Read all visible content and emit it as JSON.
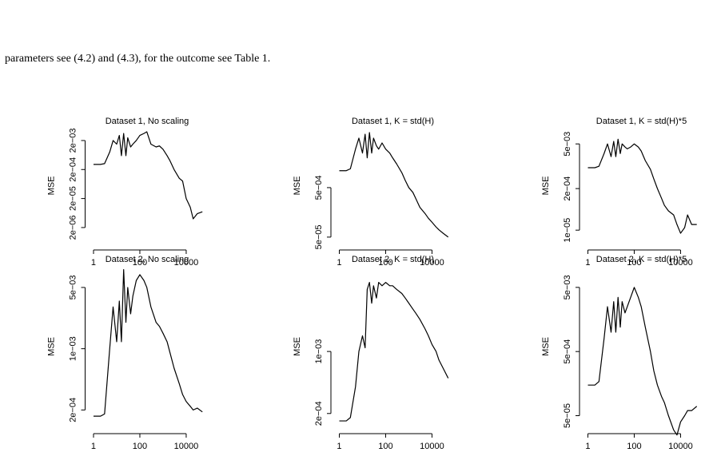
{
  "text": "parameters see (4.2) and (4.3), for the outcome see Table 1.",
  "chart_data": [
    {
      "type": "line",
      "title": "Dataset 1,  No scaling",
      "ylabel": "MSE",
      "log_x": true,
      "log_y": true,
      "color": "#000000",
      "x": [
        1,
        2,
        3,
        5,
        7,
        10,
        13,
        16,
        20,
        25,
        30,
        40,
        50,
        70,
        100,
        150,
        200,
        300,
        500,
        700,
        1000,
        1500,
        2000,
        3000,
        5000,
        7000,
        10000,
        15000,
        20000,
        30000,
        50000
      ],
      "values": [
        0.0003,
        0.0003,
        0.00032,
        0.0008,
        0.002,
        0.0015,
        0.003,
        0.0006,
        0.0035,
        0.0006,
        0.0025,
        0.0012,
        0.0015,
        0.002,
        0.003,
        0.0035,
        0.004,
        0.0015,
        0.0012,
        0.0013,
        0.001,
        0.0006,
        0.0004,
        0.0002,
        0.0001,
        8e-05,
        2e-05,
        1e-05,
        4e-06,
        6e-06,
        7e-06
      ],
      "xlim": [
        0.7,
        60000
      ],
      "ylim": [
        5.6e-07,
        0.0055
      ],
      "xticks": [
        1,
        100,
        10000
      ],
      "yticks": [
        {
          "value": 0.002,
          "label": "2e−03"
        },
        {
          "value": 0.0002,
          "label": "2e−04"
        },
        {
          "value": 2e-05,
          "label": "2e−05"
        },
        {
          "value": 2e-06,
          "label": "2e−06"
        }
      ]
    },
    {
      "type": "line",
      "title": "Dataset 1,  K = std(H)",
      "ylabel": "MSE",
      "log_x": true,
      "log_y": true,
      "color": "#000000",
      "x": [
        1,
        2,
        3,
        5,
        7,
        10,
        13,
        16,
        20,
        25,
        30,
        40,
        50,
        70,
        100,
        150,
        200,
        300,
        500,
        700,
        1000,
        1500,
        2000,
        3000,
        5000,
        7000,
        10000,
        15000,
        20000,
        30000,
        50000
      ],
      "values": [
        0.0011,
        0.0011,
        0.0012,
        0.003,
        0.005,
        0.0025,
        0.006,
        0.002,
        0.0065,
        0.0025,
        0.005,
        0.0035,
        0.003,
        0.004,
        0.003,
        0.0025,
        0.002,
        0.0015,
        0.001,
        0.0007,
        0.0005,
        0.0004,
        0.0003,
        0.0002,
        0.00015,
        0.00012,
        0.0001,
        8e-05,
        7e-05,
        6e-05,
        5e-05
      ],
      "xlim": [
        0.7,
        60000
      ],
      "ylim": [
        3.7e-05,
        0.0081
      ],
      "xticks": [
        1,
        100,
        10000
      ],
      "yticks": [
        {
          "value": 0.0005,
          "label": "5e−04"
        },
        {
          "value": 5e-05,
          "label": "5e−05"
        }
      ]
    },
    {
      "type": "line",
      "title": "Dataset 1,  K = std(H)*5",
      "ylabel": "MSE",
      "log_x": true,
      "log_y": true,
      "color": "#000000",
      "x": [
        1,
        2,
        3,
        5,
        7,
        10,
        13,
        16,
        20,
        25,
        30,
        40,
        50,
        70,
        100,
        150,
        200,
        300,
        500,
        700,
        1000,
        1500,
        2000,
        3000,
        5000,
        7000,
        10000,
        15000,
        20000,
        30000,
        50000
      ],
      "values": [
        0.0009,
        0.0009,
        0.001,
        0.0025,
        0.005,
        0.002,
        0.006,
        0.002,
        0.007,
        0.0025,
        0.005,
        0.004,
        0.0035,
        0.004,
        0.005,
        0.004,
        0.003,
        0.0015,
        0.0008,
        0.0004,
        0.0002,
        0.0001,
        6e-05,
        4e-05,
        3e-05,
        1.5e-05,
        8e-06,
        1.2e-05,
        3e-05,
        1.5e-05,
        1.5e-05
      ],
      "xlim": [
        0.7,
        60000
      ],
      "ylim": [
        3.8e-06,
        0.016
      ],
      "xticks": [
        1,
        100,
        10000
      ],
      "yticks": [
        {
          "value": 0.005,
          "label": "5e−03"
        },
        {
          "value": 0.0002,
          "label": "2e−04"
        },
        {
          "value": 1e-05,
          "label": "1e−05"
        }
      ]
    },
    {
      "type": "line",
      "title": "Dataset 2,  No scaling",
      "ylabel": "MSE",
      "log_x": true,
      "log_y": true,
      "color": "#000000",
      "x": [
        1,
        2,
        3,
        5,
        7,
        10,
        13,
        16,
        20,
        25,
        30,
        40,
        50,
        70,
        100,
        150,
        200,
        300,
        500,
        700,
        1000,
        1500,
        2000,
        3000,
        5000,
        7000,
        10000,
        15000,
        20000,
        30000,
        50000
      ],
      "values": [
        0.00017,
        0.00017,
        0.00018,
        0.001,
        0.003,
        0.0012,
        0.0035,
        0.0012,
        0.008,
        0.002,
        0.005,
        0.0025,
        0.004,
        0.006,
        0.007,
        0.006,
        0.005,
        0.003,
        0.002,
        0.0018,
        0.0015,
        0.0012,
        0.0009,
        0.0006,
        0.0004,
        0.0003,
        0.00025,
        0.00022,
        0.0002,
        0.00021,
        0.00019
      ],
      "xlim": [
        0.7,
        60000
      ],
      "ylim": [
        0.000127,
        0.0088
      ],
      "xticks": [
        1,
        100,
        10000
      ],
      "yticks": [
        {
          "value": 0.005,
          "label": "5e−03"
        },
        {
          "value": 0.001,
          "label": "1e−03"
        },
        {
          "value": 0.0002,
          "label": "2e−04"
        }
      ]
    },
    {
      "type": "line",
      "title": "Dataset 2,  K = std(H)",
      "ylabel": "MSE",
      "log_x": true,
      "log_y": true,
      "color": "#000000",
      "x": [
        1,
        2,
        3,
        5,
        7,
        10,
        13,
        16,
        20,
        25,
        30,
        40,
        50,
        70,
        100,
        150,
        200,
        300,
        500,
        700,
        1000,
        1500,
        2000,
        3000,
        5000,
        7000,
        10000,
        15000,
        20000,
        30000,
        50000
      ],
      "values": [
        0.000165,
        0.000165,
        0.00018,
        0.0004,
        0.001,
        0.0015,
        0.0011,
        0.005,
        0.006,
        0.0035,
        0.0055,
        0.004,
        0.006,
        0.0055,
        0.006,
        0.0055,
        0.0055,
        0.005,
        0.0045,
        0.004,
        0.0035,
        0.003,
        0.0027,
        0.0023,
        0.0018,
        0.0015,
        0.0012,
        0.001,
        0.0008,
        0.00065,
        0.0005
      ],
      "xlim": [
        0.7,
        60000
      ],
      "ylim": [
        0.00014,
        0.0092
      ],
      "xticks": [
        1,
        100,
        10000
      ],
      "yticks": [
        {
          "value": 0.001,
          "label": "1e−03"
        },
        {
          "value": 0.0002,
          "label": "2e−04"
        }
      ]
    },
    {
      "type": "line",
      "title": "Dataset 2,  K = std(H)*5",
      "ylabel": "MSE",
      "log_x": true,
      "log_y": true,
      "color": "#000000",
      "x": [
        1,
        2,
        3,
        5,
        7,
        10,
        13,
        16,
        20,
        25,
        30,
        40,
        50,
        70,
        100,
        150,
        200,
        300,
        500,
        700,
        1000,
        1500,
        2000,
        3000,
        5000,
        7000,
        10000,
        15000,
        20000,
        30000,
        50000
      ],
      "values": [
        0.00015,
        0.00015,
        0.00017,
        0.0008,
        0.0025,
        0.001,
        0.003,
        0.001,
        0.0035,
        0.0012,
        0.003,
        0.002,
        0.0025,
        0.0035,
        0.005,
        0.0035,
        0.0025,
        0.0012,
        0.0005,
        0.00025,
        0.00015,
        0.0001,
        8e-05,
        5e-05,
        3e-05,
        2.5e-05,
        4e-05,
        5e-05,
        6e-05,
        6e-05,
        7e-05
      ],
      "xlim": [
        0.7,
        60000
      ],
      "ylim": [
        3.3e-05,
        0.0108
      ],
      "xticks": [
        1,
        100,
        10000
      ],
      "yticks": [
        {
          "value": 0.005,
          "label": "5e−03"
        },
        {
          "value": 0.0005,
          "label": "5e−04"
        },
        {
          "value": 5e-05,
          "label": "5e−05"
        }
      ]
    }
  ]
}
